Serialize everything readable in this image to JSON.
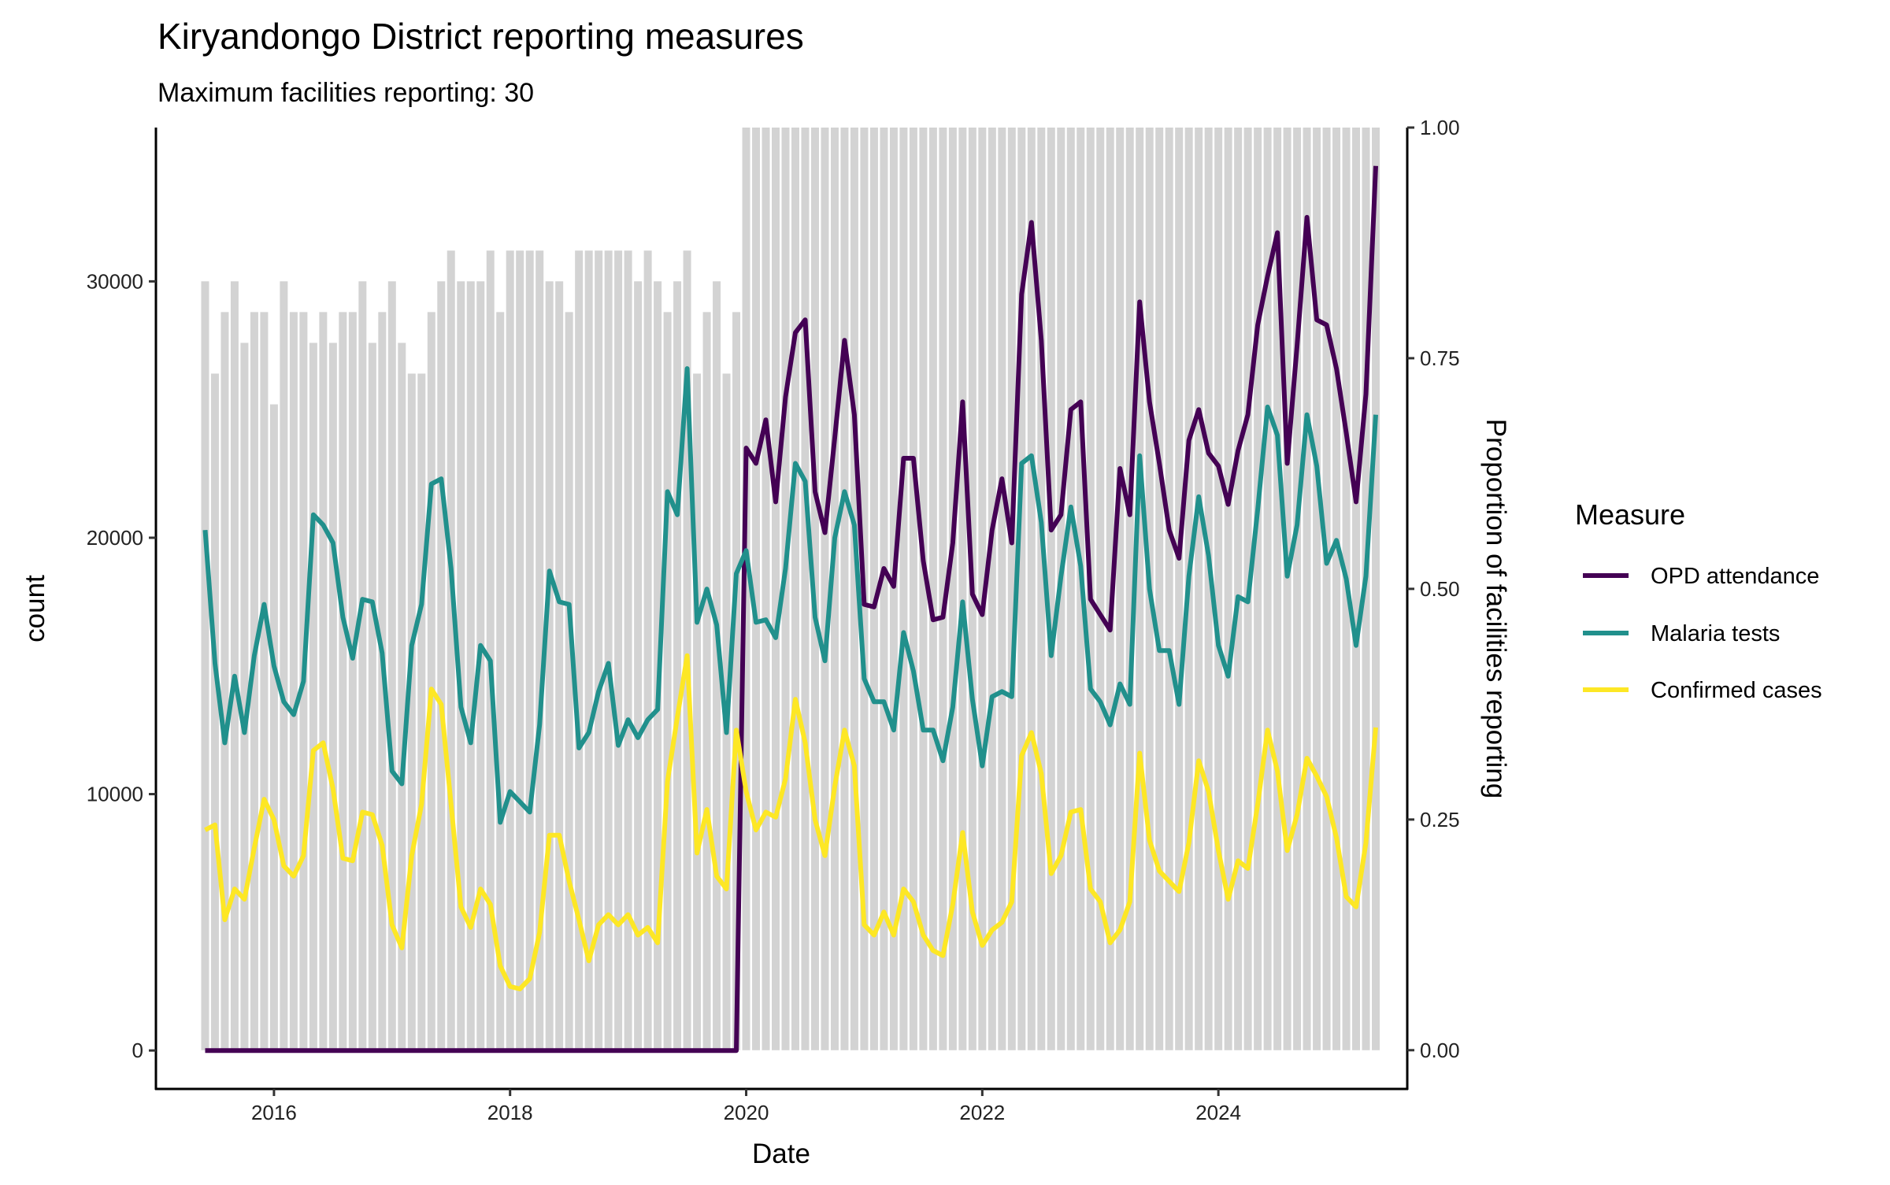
{
  "chart_data": {
    "type": "line",
    "title": "Kiryandongo District reporting measures",
    "subtitle": "Maximum facilities reporting: 30",
    "xlabel": "Date",
    "ylabel": "count",
    "y2label": "Proportion of facilities reporting",
    "start_month": "2015-06",
    "months": 120,
    "xlim": [
      2015.0,
      2025.6
    ],
    "ylim": [
      -1500,
      36000
    ],
    "y2lim": [
      -0.042,
      1.0
    ],
    "x_ticks": [
      "2016",
      "2018",
      "2020",
      "2022",
      "2024"
    ],
    "y_ticks": [
      "0",
      "10000",
      "20000",
      "30000"
    ],
    "y2_ticks": [
      "0.00",
      "0.25",
      "0.50",
      "0.75",
      "1.00"
    ],
    "max_facilities": 30,
    "facilities_reporting": [
      25,
      22,
      24,
      25,
      23,
      24,
      24,
      21,
      25,
      24,
      24,
      23,
      24,
      23,
      24,
      24,
      25,
      23,
      24,
      25,
      23,
      22,
      22,
      24,
      25,
      26,
      25,
      25,
      25,
      26,
      24,
      26,
      26,
      26,
      26,
      25,
      25,
      24,
      26,
      26,
      26,
      26,
      26,
      26,
      25,
      26,
      25,
      24,
      25,
      26,
      22,
      24,
      25,
      22,
      24,
      30,
      30,
      30,
      30,
      30,
      30,
      30,
      30,
      30,
      30,
      30,
      30,
      30,
      30,
      30,
      30,
      30,
      30,
      30,
      30,
      30,
      30,
      30,
      30,
      30,
      30,
      30,
      30,
      30,
      30,
      30,
      30,
      30,
      30,
      30,
      30,
      30,
      30,
      30,
      30,
      30,
      30,
      30,
      30,
      30,
      30,
      30,
      30,
      30,
      30,
      30,
      30,
      30,
      30,
      30,
      30,
      30,
      30,
      30,
      30,
      30,
      30,
      30,
      30,
      30
    ],
    "legend": {
      "title": "Measure",
      "position": "right"
    },
    "series": [
      {
        "name": "OPD attendance",
        "color": "#440154",
        "values": [
          0,
          0,
          0,
          0,
          0,
          0,
          0,
          0,
          0,
          0,
          0,
          0,
          0,
          0,
          0,
          0,
          0,
          0,
          0,
          0,
          0,
          0,
          0,
          0,
          0,
          0,
          0,
          0,
          0,
          0,
          0,
          0,
          0,
          0,
          0,
          0,
          0,
          0,
          0,
          0,
          0,
          0,
          0,
          0,
          0,
          0,
          0,
          0,
          0,
          0,
          0,
          0,
          0,
          0,
          0,
          23500,
          22900,
          24600,
          21400,
          25500,
          28000,
          28500,
          21800,
          20200,
          23900,
          27700,
          24800,
          17400,
          17300,
          18800,
          18100,
          23100,
          23100,
          19100,
          16800,
          16900,
          19800,
          25300,
          17800,
          17000,
          20300,
          22300,
          19800,
          29500,
          32300,
          27700,
          20300,
          20900,
          25000,
          25300,
          17600,
          17000,
          16400,
          22700,
          20900,
          29200,
          25300,
          22900,
          20300,
          19200,
          23800,
          25000,
          23300,
          22800,
          21300,
          23400,
          24800,
          28300,
          30200,
          31900,
          22900,
          27500,
          32500,
          28500,
          28300,
          26600,
          24100,
          21400,
          25600,
          34500
        ]
      },
      {
        "name": "Malaria tests",
        "color": "#21908C",
        "values": [
          20300,
          15100,
          12000,
          14600,
          12400,
          15400,
          17400,
          15000,
          13600,
          13100,
          14400,
          20900,
          20500,
          19800,
          16900,
          15300,
          17600,
          17500,
          15500,
          10900,
          10400,
          15800,
          17400,
          22100,
          22300,
          18800,
          13400,
          12000,
          15800,
          15200,
          8900,
          10100,
          9700,
          9300,
          12700,
          18700,
          17500,
          17400,
          11800,
          12400,
          14000,
          15100,
          11900,
          12900,
          12200,
          12900,
          13300,
          21800,
          20900,
          26600,
          16700,
          18000,
          16600,
          12400,
          18600,
          19500,
          16700,
          16800,
          16100,
          18800,
          22900,
          22200,
          16900,
          15200,
          20000,
          21800,
          20500,
          14500,
          13600,
          13600,
          12500,
          16300,
          14800,
          12500,
          12500,
          11300,
          13400,
          17500,
          13700,
          11100,
          13800,
          14000,
          13800,
          22900,
          23200,
          20600,
          15400,
          18500,
          21200,
          18900,
          14100,
          13600,
          12700,
          14300,
          13500,
          23200,
          18000,
          15600,
          15600,
          13500,
          18500,
          21600,
          19300,
          15800,
          14600,
          17700,
          17500,
          21100,
          25100,
          24000,
          18500,
          20500,
          24800,
          22800,
          19000,
          19900,
          18400,
          15800,
          18500,
          24800
        ]
      },
      {
        "name": "Confirmed cases",
        "color": "#FDE725",
        "values": [
          8600,
          8800,
          5100,
          6300,
          5900,
          7900,
          9800,
          9000,
          7200,
          6800,
          7600,
          11700,
          12000,
          10200,
          7500,
          7400,
          9300,
          9200,
          8000,
          4900,
          4000,
          7600,
          9600,
          14100,
          13500,
          9600,
          5600,
          4800,
          6300,
          5700,
          3300,
          2500,
          2400,
          2800,
          4600,
          8400,
          8400,
          6600,
          5100,
          3500,
          4900,
          5300,
          4900,
          5300,
          4500,
          4800,
          4200,
          10500,
          13000,
          15400,
          7700,
          9400,
          6800,
          6300,
          12500,
          10100,
          8600,
          9300,
          9100,
          10600,
          13700,
          12000,
          9000,
          7600,
          10300,
          12500,
          11100,
          4900,
          4500,
          5400,
          4500,
          6300,
          5800,
          4500,
          3900,
          3700,
          5700,
          8500,
          5400,
          4100,
          4700,
          5000,
          5800,
          11500,
          12400,
          10800,
          6900,
          7600,
          9300,
          9400,
          6300,
          5800,
          4200,
          4700,
          5800,
          11600,
          8200,
          7000,
          6600,
          6200,
          8100,
          11300,
          10100,
          7800,
          5900,
          7400,
          7100,
          9600,
          12500,
          10900,
          7800,
          9200,
          11400,
          10700,
          9900,
          8300,
          6000,
          5600,
          8100,
          12600
        ]
      }
    ]
  }
}
